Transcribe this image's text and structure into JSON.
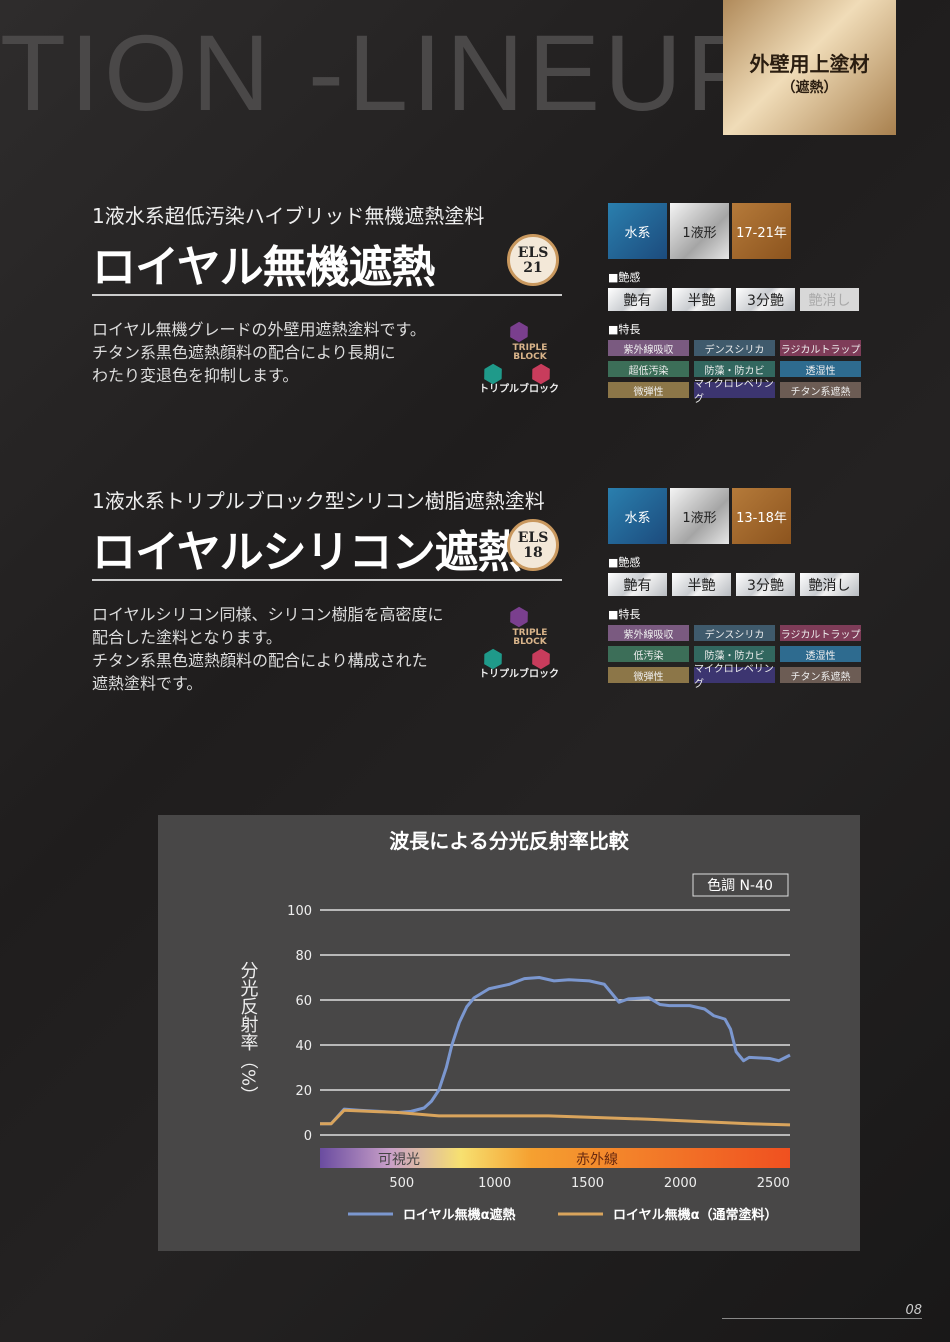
{
  "watermark": "TION -LINEUP",
  "category": {
    "line1": "外壁用上塗材",
    "line2": "（遮熱）"
  },
  "products": [
    {
      "subtitle": "1液水系超低汚染ハイブリッド無機遮熱塗料",
      "title": "ロイヤル無機遮熱",
      "els": [
        "ELS",
        "21"
      ],
      "desc": [
        "ロイヤル無機グレードの外壁用遮熱塗料です。",
        "チタン系黒色遮熱顔料の配合により長期に",
        "わたり変退色を抑制します。"
      ],
      "triple": {
        "mark": "TRIPLE BLOCK",
        "label": "トリプルブロック"
      },
      "badges": [
        "水系",
        "1液形",
        "17-21年"
      ],
      "gloss_heading": "■艶感",
      "gloss": [
        {
          "label": "艶有",
          "on": true
        },
        {
          "label": "半艶",
          "on": true
        },
        {
          "label": "3分艶",
          "on": true
        },
        {
          "label": "艶消し",
          "on": false
        }
      ],
      "feature_heading": "■特長",
      "features": [
        {
          "label": "紫外線吸収",
          "color": "#7a5a80"
        },
        {
          "label": "デンスシリカ",
          "color": "#3f5a6c"
        },
        {
          "label": "ラジカルトラップ",
          "color": "#7e3c58"
        },
        {
          "label": "超低汚染",
          "color": "#3c6e58"
        },
        {
          "label": "防藻・防カビ",
          "color": "#32675f"
        },
        {
          "label": "透湿性",
          "color": "#2e6b8f"
        },
        {
          "label": "微弾性",
          "color": "#8c7648"
        },
        {
          "label": "マイクロレベリング",
          "color": "#3c3570"
        },
        {
          "label": "チタン系遮熱",
          "color": "#6c5c54"
        }
      ]
    },
    {
      "subtitle": "1液水系トリプルブロック型シリコン樹脂遮熱塗料",
      "title": "ロイヤルシリコン遮熱",
      "els": [
        "ELS",
        "18"
      ],
      "desc": [
        "ロイヤルシリコン同様、シリコン樹脂を高密度に",
        "配合した塗料となります。",
        "チタン系黒色遮熱顔料の配合により構成された",
        "遮熱塗料です。"
      ],
      "triple": {
        "mark": "TRIPLE BLOCK",
        "label": "トリプルブロック"
      },
      "badges": [
        "水系",
        "1液形",
        "13-18年"
      ],
      "gloss_heading": "■艶感",
      "gloss": [
        {
          "label": "艶有",
          "on": true
        },
        {
          "label": "半艶",
          "on": true
        },
        {
          "label": "3分艶",
          "on": true
        },
        {
          "label": "艶消し",
          "on": true
        }
      ],
      "feature_heading": "■特長",
      "features": [
        {
          "label": "紫外線吸収",
          "color": "#7a5a80"
        },
        {
          "label": "デンスシリカ",
          "color": "#3f5a6c"
        },
        {
          "label": "ラジカルトラップ",
          "color": "#7e3c58"
        },
        {
          "label": "低汚染",
          "color": "#3c6e58"
        },
        {
          "label": "防藻・防カビ",
          "color": "#32675f"
        },
        {
          "label": "透湿性",
          "color": "#2e6b8f"
        },
        {
          "label": "微弾性",
          "color": "#8c7648"
        },
        {
          "label": "マイクロレベリング",
          "color": "#3c3570"
        },
        {
          "label": "チタン系遮熱",
          "color": "#6c5c54"
        }
      ]
    }
  ],
  "chart_data": {
    "type": "line",
    "title": "波長による分光反射率比較",
    "note": "色調 N-40",
    "ylabel": "分光反射率（%）",
    "ylim": [
      0,
      100
    ],
    "yticks": [
      0,
      20,
      40,
      60,
      80,
      100
    ],
    "xlim": [
      60,
      2590
    ],
    "xticks": [
      500,
      1000,
      1500,
      2000,
      2500
    ],
    "grid": true,
    "bands": [
      {
        "label": "可視光"
      },
      {
        "label": "赤外線"
      }
    ],
    "legend": "bottom",
    "series": [
      {
        "name": "ロイヤル無機α遮熱",
        "color": "#7b97cf",
        "x": [
          60,
          120,
          190,
          270,
          380,
          480,
          550,
          620,
          660,
          700,
          740,
          770,
          810,
          850,
          890,
          970,
          1080,
          1160,
          1240,
          1320,
          1400,
          1510,
          1590,
          1630,
          1670,
          1720,
          1830,
          1890,
          1940,
          2050,
          2130,
          2180,
          2240,
          2270,
          2300,
          2340,
          2370,
          2480,
          2530,
          2590
        ],
        "y": [
          5,
          5,
          11.5,
          11,
          10.5,
          10,
          10.5,
          12,
          15,
          20,
          30,
          40,
          50,
          57,
          61,
          65,
          67,
          69.5,
          70,
          68.5,
          69,
          68.5,
          67,
          63,
          59,
          60.5,
          61,
          58,
          57.5,
          57.5,
          56,
          53,
          51.5,
          47,
          37,
          33,
          34.5,
          34,
          33,
          35.5
        ]
      },
      {
        "name": "ロイヤル無機α（通常塗料）",
        "color": "#d9a45c",
        "x": [
          60,
          120,
          190,
          480,
          700,
          1290,
          1830,
          2100,
          2370,
          2590
        ],
        "y": [
          5,
          5,
          11,
          10,
          8.5,
          8.5,
          7,
          6,
          5,
          4.5
        ]
      }
    ]
  },
  "page_number": "08"
}
